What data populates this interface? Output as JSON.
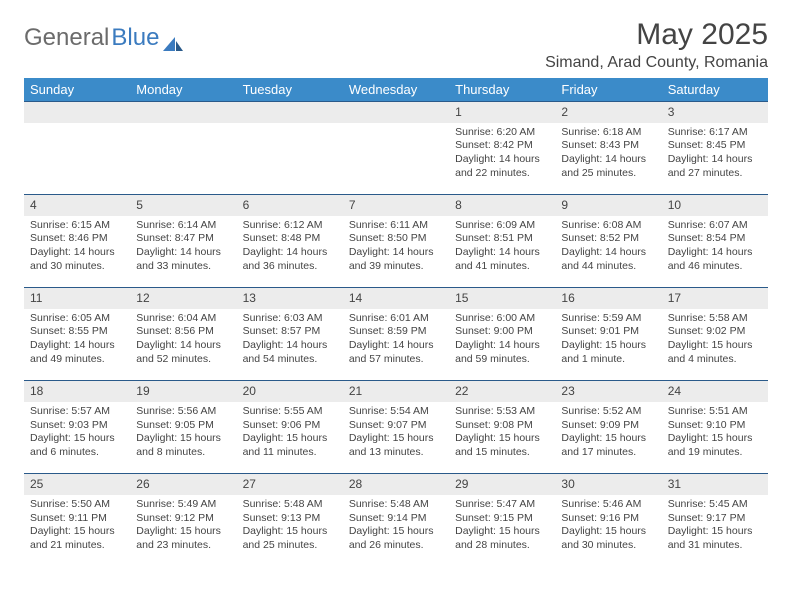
{
  "brand": {
    "general": "General",
    "blue": "Blue"
  },
  "title": "May 2025",
  "location": "Simand, Arad County, Romania",
  "colors": {
    "header_bg": "#3b8bc9",
    "header_text": "#ffffff",
    "daynum_bg": "#ececec",
    "daynum_border": "#2a5a8a",
    "text": "#444444",
    "logo_gray": "#6b6b6b",
    "logo_blue": "#3b7bbf",
    "page_bg": "#ffffff"
  },
  "typography": {
    "body_font": "Arial",
    "title_fontsize": 30,
    "location_fontsize": 16,
    "day_header_fontsize": 13,
    "daynum_fontsize": 12,
    "cell_fontsize": 10.5
  },
  "day_headers": [
    "Sunday",
    "Monday",
    "Tuesday",
    "Wednesday",
    "Thursday",
    "Friday",
    "Saturday"
  ],
  "weeks": [
    [
      {
        "n": "",
        "lines": []
      },
      {
        "n": "",
        "lines": []
      },
      {
        "n": "",
        "lines": []
      },
      {
        "n": "",
        "lines": []
      },
      {
        "n": "1",
        "lines": [
          "Sunrise: 6:20 AM",
          "Sunset: 8:42 PM",
          "Daylight: 14 hours",
          "and 22 minutes."
        ]
      },
      {
        "n": "2",
        "lines": [
          "Sunrise: 6:18 AM",
          "Sunset: 8:43 PM",
          "Daylight: 14 hours",
          "and 25 minutes."
        ]
      },
      {
        "n": "3",
        "lines": [
          "Sunrise: 6:17 AM",
          "Sunset: 8:45 PM",
          "Daylight: 14 hours",
          "and 27 minutes."
        ]
      }
    ],
    [
      {
        "n": "4",
        "lines": [
          "Sunrise: 6:15 AM",
          "Sunset: 8:46 PM",
          "Daylight: 14 hours",
          "and 30 minutes."
        ]
      },
      {
        "n": "5",
        "lines": [
          "Sunrise: 6:14 AM",
          "Sunset: 8:47 PM",
          "Daylight: 14 hours",
          "and 33 minutes."
        ]
      },
      {
        "n": "6",
        "lines": [
          "Sunrise: 6:12 AM",
          "Sunset: 8:48 PM",
          "Daylight: 14 hours",
          "and 36 minutes."
        ]
      },
      {
        "n": "7",
        "lines": [
          "Sunrise: 6:11 AM",
          "Sunset: 8:50 PM",
          "Daylight: 14 hours",
          "and 39 minutes."
        ]
      },
      {
        "n": "8",
        "lines": [
          "Sunrise: 6:09 AM",
          "Sunset: 8:51 PM",
          "Daylight: 14 hours",
          "and 41 minutes."
        ]
      },
      {
        "n": "9",
        "lines": [
          "Sunrise: 6:08 AM",
          "Sunset: 8:52 PM",
          "Daylight: 14 hours",
          "and 44 minutes."
        ]
      },
      {
        "n": "10",
        "lines": [
          "Sunrise: 6:07 AM",
          "Sunset: 8:54 PM",
          "Daylight: 14 hours",
          "and 46 minutes."
        ]
      }
    ],
    [
      {
        "n": "11",
        "lines": [
          "Sunrise: 6:05 AM",
          "Sunset: 8:55 PM",
          "Daylight: 14 hours",
          "and 49 minutes."
        ]
      },
      {
        "n": "12",
        "lines": [
          "Sunrise: 6:04 AM",
          "Sunset: 8:56 PM",
          "Daylight: 14 hours",
          "and 52 minutes."
        ]
      },
      {
        "n": "13",
        "lines": [
          "Sunrise: 6:03 AM",
          "Sunset: 8:57 PM",
          "Daylight: 14 hours",
          "and 54 minutes."
        ]
      },
      {
        "n": "14",
        "lines": [
          "Sunrise: 6:01 AM",
          "Sunset: 8:59 PM",
          "Daylight: 14 hours",
          "and 57 minutes."
        ]
      },
      {
        "n": "15",
        "lines": [
          "Sunrise: 6:00 AM",
          "Sunset: 9:00 PM",
          "Daylight: 14 hours",
          "and 59 minutes."
        ]
      },
      {
        "n": "16",
        "lines": [
          "Sunrise: 5:59 AM",
          "Sunset: 9:01 PM",
          "Daylight: 15 hours",
          "and 1 minute."
        ]
      },
      {
        "n": "17",
        "lines": [
          "Sunrise: 5:58 AM",
          "Sunset: 9:02 PM",
          "Daylight: 15 hours",
          "and 4 minutes."
        ]
      }
    ],
    [
      {
        "n": "18",
        "lines": [
          "Sunrise: 5:57 AM",
          "Sunset: 9:03 PM",
          "Daylight: 15 hours",
          "and 6 minutes."
        ]
      },
      {
        "n": "19",
        "lines": [
          "Sunrise: 5:56 AM",
          "Sunset: 9:05 PM",
          "Daylight: 15 hours",
          "and 8 minutes."
        ]
      },
      {
        "n": "20",
        "lines": [
          "Sunrise: 5:55 AM",
          "Sunset: 9:06 PM",
          "Daylight: 15 hours",
          "and 11 minutes."
        ]
      },
      {
        "n": "21",
        "lines": [
          "Sunrise: 5:54 AM",
          "Sunset: 9:07 PM",
          "Daylight: 15 hours",
          "and 13 minutes."
        ]
      },
      {
        "n": "22",
        "lines": [
          "Sunrise: 5:53 AM",
          "Sunset: 9:08 PM",
          "Daylight: 15 hours",
          "and 15 minutes."
        ]
      },
      {
        "n": "23",
        "lines": [
          "Sunrise: 5:52 AM",
          "Sunset: 9:09 PM",
          "Daylight: 15 hours",
          "and 17 minutes."
        ]
      },
      {
        "n": "24",
        "lines": [
          "Sunrise: 5:51 AM",
          "Sunset: 9:10 PM",
          "Daylight: 15 hours",
          "and 19 minutes."
        ]
      }
    ],
    [
      {
        "n": "25",
        "lines": [
          "Sunrise: 5:50 AM",
          "Sunset: 9:11 PM",
          "Daylight: 15 hours",
          "and 21 minutes."
        ]
      },
      {
        "n": "26",
        "lines": [
          "Sunrise: 5:49 AM",
          "Sunset: 9:12 PM",
          "Daylight: 15 hours",
          "and 23 minutes."
        ]
      },
      {
        "n": "27",
        "lines": [
          "Sunrise: 5:48 AM",
          "Sunset: 9:13 PM",
          "Daylight: 15 hours",
          "and 25 minutes."
        ]
      },
      {
        "n": "28",
        "lines": [
          "Sunrise: 5:48 AM",
          "Sunset: 9:14 PM",
          "Daylight: 15 hours",
          "and 26 minutes."
        ]
      },
      {
        "n": "29",
        "lines": [
          "Sunrise: 5:47 AM",
          "Sunset: 9:15 PM",
          "Daylight: 15 hours",
          "and 28 minutes."
        ]
      },
      {
        "n": "30",
        "lines": [
          "Sunrise: 5:46 AM",
          "Sunset: 9:16 PM",
          "Daylight: 15 hours",
          "and 30 minutes."
        ]
      },
      {
        "n": "31",
        "lines": [
          "Sunrise: 5:45 AM",
          "Sunset: 9:17 PM",
          "Daylight: 15 hours",
          "and 31 minutes."
        ]
      }
    ]
  ]
}
